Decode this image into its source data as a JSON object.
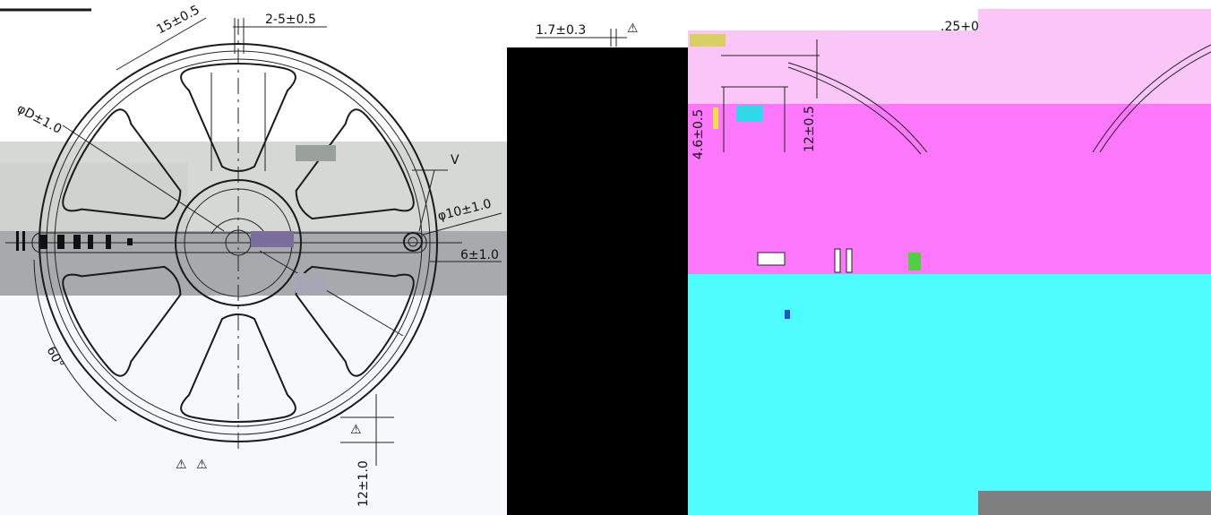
{
  "dimensions": {
    "width_15": "15±0.5",
    "width_2_5": "2-5±0.5",
    "thickness": "1.7±0.3",
    "diameter_D": "φD±1.0",
    "label_V": "V",
    "hole_10": "φ10±1.0",
    "offset_6": "6±1.0",
    "angle_60": "60°",
    "height_12": "12±1.0",
    "right_25": ".25+0",
    "right_46": "4.6±0.5",
    "right_12": "12±0.5"
  },
  "symbols": {
    "warning": "⚠"
  },
  "colors": {
    "magenta_light": "#f9c6f7",
    "magenta": "#fd78fd",
    "cyan": "#4ffdfe",
    "gray_band": "#d6d8d6",
    "gray_band2": "#a7a9ad",
    "gray_corner": "#7f7f7f",
    "black_panel": "#000000"
  }
}
